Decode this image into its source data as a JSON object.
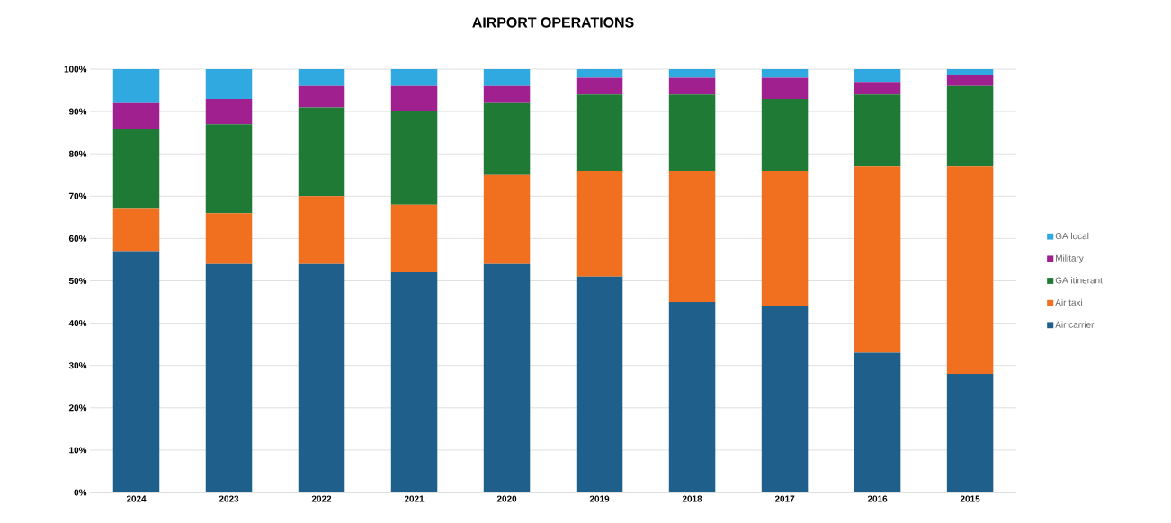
{
  "chart_data": {
    "type": "bar",
    "title": "AIRPORT OPERATIONS",
    "stacked": true,
    "categories": [
      "2024",
      "2023",
      "2022",
      "2021",
      "2020",
      "2019",
      "2018",
      "2017",
      "2016",
      "2015"
    ],
    "series": [
      {
        "name": "Air carrier",
        "color": "#1f5f8b",
        "values": [
          57,
          54,
          54,
          52,
          54,
          51,
          45,
          44,
          33,
          28
        ]
      },
      {
        "name": "Air taxi",
        "color": "#f07020",
        "values": [
          10,
          12,
          16,
          16,
          21,
          25,
          31,
          32,
          44,
          49
        ]
      },
      {
        "name": "GA itinerant",
        "color": "#1e7a35",
        "values": [
          19,
          21,
          21,
          22,
          17,
          18,
          18,
          17,
          17,
          19
        ]
      },
      {
        "name": "Military",
        "color": "#a02090",
        "values": [
          6,
          6,
          5,
          6,
          4,
          4,
          4,
          5,
          3,
          2.5
        ]
      },
      {
        "name": "GA local",
        "color": "#30a8e0",
        "values": [
          8,
          7,
          4,
          4,
          4,
          2,
          2,
          2,
          3,
          1.5
        ]
      }
    ],
    "ylim": [
      0,
      100
    ],
    "yticks": [
      {
        "value": 0,
        "label": "0%"
      },
      {
        "value": 10,
        "label": "10%"
      },
      {
        "value": 20,
        "label": "20%"
      },
      {
        "value": 30,
        "label": "30%"
      },
      {
        "value": 40,
        "label": "40%"
      },
      {
        "value": 50,
        "label": "50%"
      },
      {
        "value": 60,
        "label": "60%"
      },
      {
        "value": 70,
        "label": "70%"
      },
      {
        "value": 80,
        "label": "80%"
      },
      {
        "value": 90,
        "label": "90%"
      },
      {
        "value": 100,
        "label": "100%"
      }
    ],
    "grid": "y",
    "legend": "right"
  }
}
